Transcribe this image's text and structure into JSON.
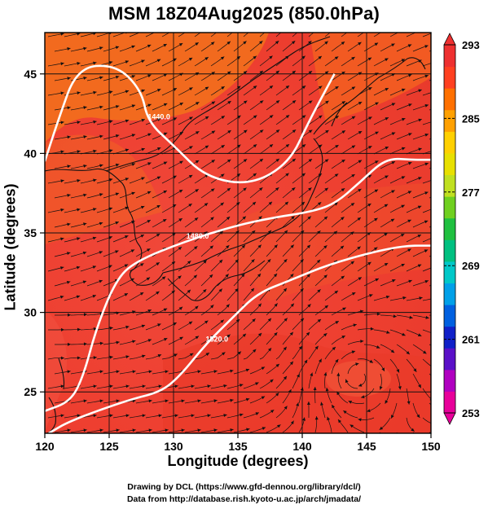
{
  "title": "MSM 18Z04Aug2025 (850.0hPa)",
  "xlabel": "Longitude (degrees)",
  "ylabel": "Latitude  (degrees)",
  "footer": {
    "line1": "Drawing by DCL (https://www.gfd-dennou.org/library/dcl/)",
    "line2": "Data from http://database.rish.kyoto-u.ac.jp/arch/jmadata/"
  },
  "map": {
    "lon_range": [
      120,
      150
    ],
    "lat_range": [
      22.4,
      47.6
    ],
    "x_ticks": [
      120,
      125,
      130,
      135,
      140,
      145,
      150
    ],
    "y_ticks": [
      25,
      30,
      35,
      40,
      45
    ],
    "grid": true,
    "field": "temperature (shaded) with streamlines and geopotential height contours",
    "contours": [
      {
        "label": "1440.0",
        "points": [
          [
            120,
            39.5
          ],
          [
            121,
            42
          ],
          [
            122.5,
            45.4
          ],
          [
            125.5,
            45.6
          ],
          [
            127.5,
            44
          ],
          [
            128,
            42
          ],
          [
            130,
            40.5
          ],
          [
            132.5,
            38.5
          ],
          [
            136,
            38
          ],
          [
            139,
            39.4
          ],
          [
            140.5,
            42
          ],
          [
            142.5,
            45
          ]
        ]
      },
      {
        "label": "1480.0",
        "points": [
          [
            120,
            23.8
          ],
          [
            122,
            24.4
          ],
          [
            123,
            26
          ],
          [
            124,
            29
          ],
          [
            125.5,
            32
          ],
          [
            127,
            33.2
          ],
          [
            131,
            34.5
          ],
          [
            135,
            35.5
          ],
          [
            138,
            36
          ],
          [
            140.5,
            36.3
          ],
          [
            142.5,
            36.8
          ],
          [
            144.5,
            38.2
          ],
          [
            146.5,
            39.7
          ],
          [
            148.5,
            39.6
          ],
          [
            150,
            39.6
          ]
        ]
      },
      {
        "label": "1520.0",
        "points": [
          [
            120.3,
            22.4
          ],
          [
            122,
            23.2
          ],
          [
            126.5,
            24.5
          ],
          [
            129,
            25
          ],
          [
            130.5,
            26
          ],
          [
            132.5,
            28
          ],
          [
            134.5,
            29.6
          ],
          [
            136.5,
            31.2
          ],
          [
            139,
            32
          ],
          [
            142,
            33
          ],
          [
            145.5,
            33.8
          ],
          [
            148,
            34.2
          ],
          [
            150,
            34.2
          ]
        ]
      }
    ]
  },
  "colorbar": {
    "label_values": [
      "293",
      "285",
      "277",
      "269",
      "261",
      "253"
    ],
    "min": 253,
    "max": 293,
    "colors": [
      "#e8009a",
      "#b000c0",
      "#5a10c8",
      "#1020c8",
      "#0060e0",
      "#00a0e8",
      "#00c8c8",
      "#00c080",
      "#20c040",
      "#70d020",
      "#c0e020",
      "#e8e000",
      "#ffd000",
      "#ffa000",
      "#ff7000",
      "#ff4020",
      "#ee3030"
    ]
  }
}
